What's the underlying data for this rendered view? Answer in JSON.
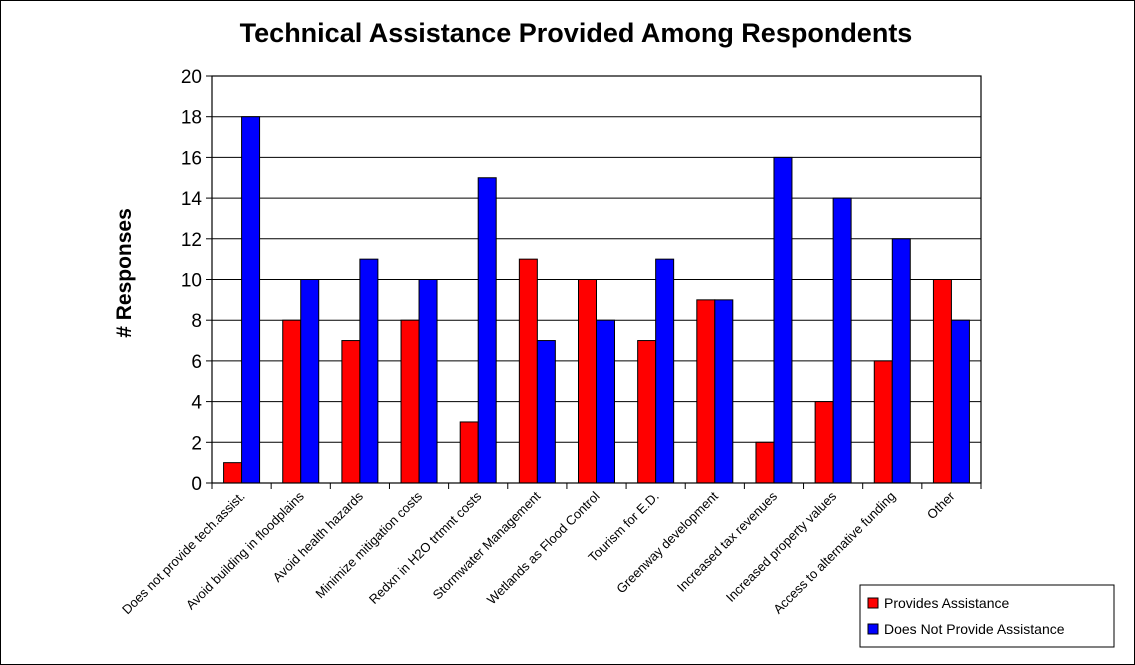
{
  "chart_data": {
    "type": "bar",
    "title": "Technical Assistance Provided Among Respondents",
    "ylabel": "# Responses",
    "xlabel": "",
    "ylim": [
      0,
      20
    ],
    "ytick_step": 2,
    "grid": true,
    "legend_position": "bottom-right",
    "categories": [
      "Does not provide tech.assist.",
      "Avoid building in floodplains",
      "Avoid health hazards",
      "Minimize mitigation costs",
      "Redxn in  H2O trtmnt costs",
      "Stormwater Management",
      "Wetlands as Flood Control",
      "Tourism for E.D.",
      "Greenway development",
      "Increased tax revenues",
      "Increased property values",
      "Access to alternative funding",
      "Other"
    ],
    "series": [
      {
        "name": "Provides Assistance",
        "color": "#ff0000",
        "values": [
          1,
          8,
          7,
          8,
          3,
          11,
          10,
          7,
          9,
          2,
          4,
          6,
          10
        ]
      },
      {
        "name": "Does Not Provide Assistance",
        "color": "#0000ff",
        "values": [
          18,
          10,
          11,
          10,
          15,
          7,
          8,
          11,
          9,
          16,
          14,
          12,
          8
        ]
      }
    ]
  }
}
